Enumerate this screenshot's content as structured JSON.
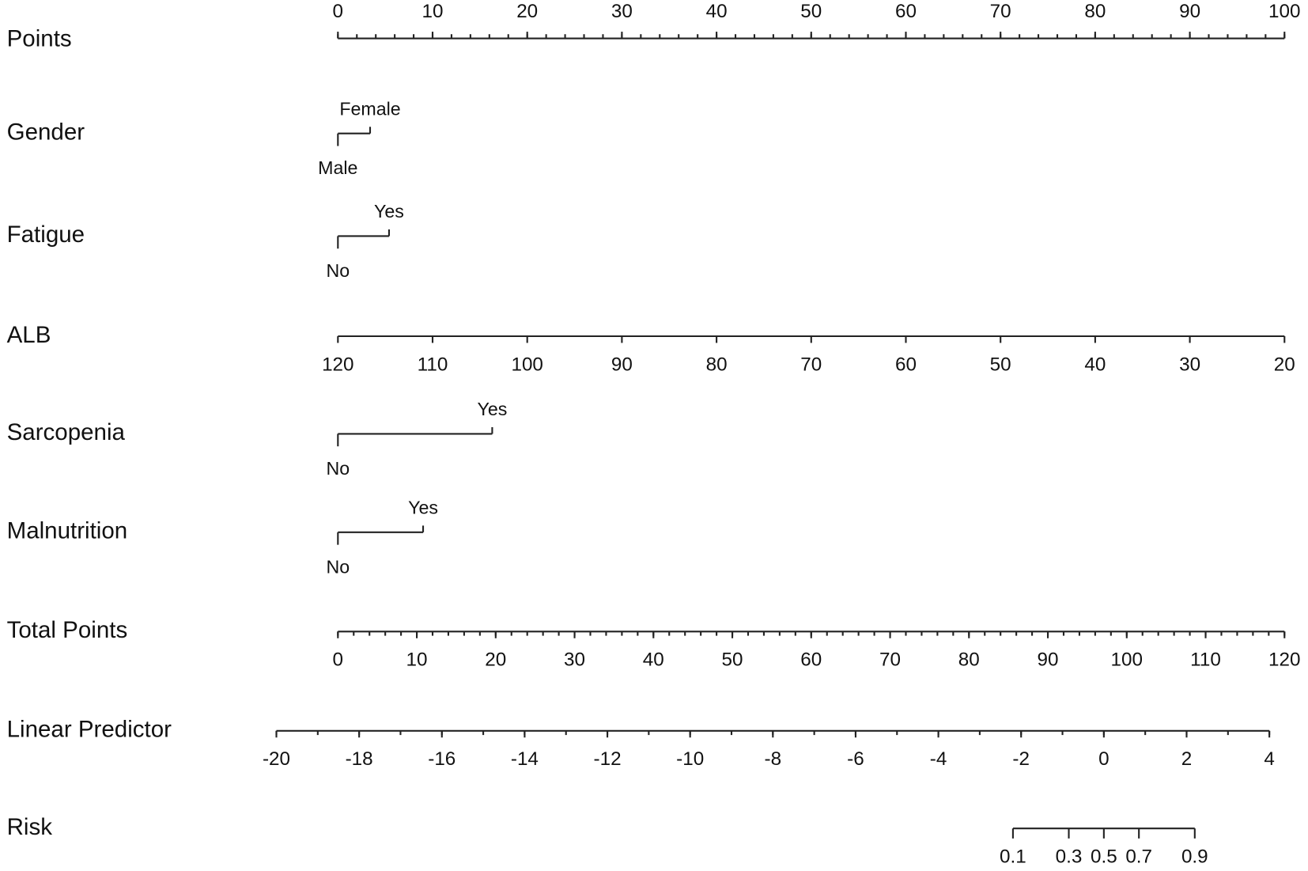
{
  "chart_data": {
    "type": "nomogram",
    "rows": [
      {
        "kind": "axis",
        "label": "Points",
        "lim": [
          0,
          100
        ],
        "points_at_lim": [
          0,
          100
        ],
        "ticks": [
          0,
          10,
          20,
          30,
          40,
          50,
          60,
          70,
          80,
          90,
          100
        ],
        "minor_step": 2,
        "tick_side": "above"
      },
      {
        "kind": "factor",
        "label": "Gender",
        "levels": [
          "Male",
          "Female"
        ],
        "points": [
          0,
          3.4
        ]
      },
      {
        "kind": "factor",
        "label": "Fatigue",
        "levels": [
          "No",
          "Yes"
        ],
        "points": [
          0,
          5.4
        ]
      },
      {
        "kind": "axis",
        "label": "ALB",
        "lim": [
          120,
          20
        ],
        "points_at_lim": [
          0,
          100
        ],
        "ticks": [
          120,
          110,
          100,
          90,
          80,
          70,
          60,
          50,
          40,
          30,
          20
        ],
        "tick_side": "below"
      },
      {
        "kind": "factor",
        "label": "Sarcopenia",
        "levels": [
          "No",
          "Yes"
        ],
        "points": [
          0,
          16.3
        ]
      },
      {
        "kind": "factor",
        "label": "Malnutrition",
        "levels": [
          "No",
          "Yes"
        ],
        "points": [
          0,
          9.0
        ]
      },
      {
        "kind": "axis",
        "label": "Total Points",
        "lim": [
          0,
          120
        ],
        "points_at_lim": [
          0,
          100
        ],
        "ticks": [
          0,
          10,
          20,
          30,
          40,
          50,
          60,
          70,
          80,
          90,
          100,
          110,
          120
        ],
        "minor_step": 2,
        "tick_side": "below"
      },
      {
        "kind": "axis",
        "label": "Linear Predictor",
        "lim": [
          -20,
          4
        ],
        "points_at_lim": [
          -6.5,
          98.4
        ],
        "ticks": [
          -20,
          -18,
          -16,
          -14,
          -12,
          -10,
          -8,
          -6,
          -4,
          -2,
          0,
          2,
          4
        ],
        "minor_step": 1,
        "tick_side": "below"
      },
      {
        "kind": "logit",
        "label": "Risk",
        "ticks": [
          0.1,
          0.3,
          0.5,
          0.7,
          0.9
        ],
        "tick_side": "below"
      }
    ]
  }
}
